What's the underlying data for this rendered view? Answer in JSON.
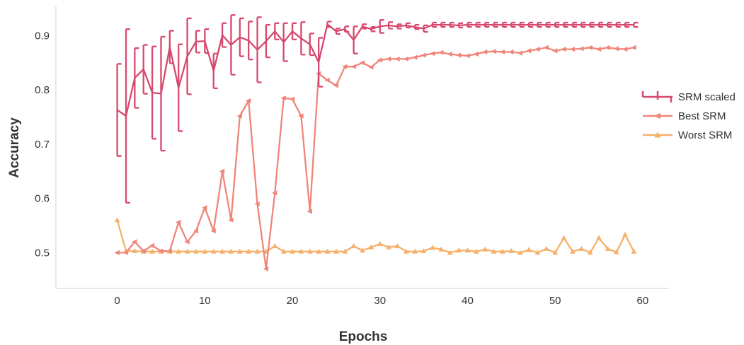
{
  "chart_data": {
    "type": "line",
    "xlabel": "Epochs",
    "ylabel": "Accuracy",
    "xlim": [
      -7,
      63
    ],
    "ylim": [
      0.434,
      0.954
    ],
    "xticks": [
      0,
      10,
      20,
      30,
      40,
      50,
      60
    ],
    "yticks": [
      0.5,
      0.6,
      0.7,
      0.8,
      0.9
    ],
    "ytick_labels": [
      "0.5",
      "0.6",
      "0.7",
      "0.8",
      "0.9"
    ],
    "grid": false,
    "legend_position": "right",
    "series": [
      {
        "name": "SRM scaled",
        "color": "#d6496e",
        "marker": "errorbar",
        "values": [
          0.763,
          0.752,
          0.822,
          0.838,
          0.795,
          0.793,
          0.879,
          0.804,
          0.862,
          0.889,
          0.89,
          0.835,
          0.901,
          0.883,
          0.897,
          0.891,
          0.874,
          0.89,
          0.908,
          0.888,
          0.908,
          0.895,
          0.884,
          0.851,
          0.921,
          0.908,
          0.912,
          0.892,
          0.917,
          0.912,
          0.917,
          0.919,
          0.917,
          0.919,
          0.916,
          0.913,
          0.92,
          0.92,
          0.92,
          0.919,
          0.92,
          0.92,
          0.92,
          0.92,
          0.92,
          0.92,
          0.92,
          0.92,
          0.92,
          0.92,
          0.92,
          0.92,
          0.92,
          0.92,
          0.92,
          0.92,
          0.92,
          0.92,
          0.92,
          0.92
        ],
        "errors": [
          0.085,
          0.16,
          0.055,
          0.045,
          0.085,
          0.105,
          0.03,
          0.08,
          0.07,
          0.02,
          0.022,
          0.032,
          0.022,
          0.055,
          0.035,
          0.035,
          0.06,
          0.03,
          0.015,
          0.035,
          0.015,
          0.03,
          0.02,
          0.045,
          0.005,
          0.005,
          0.005,
          0.025,
          0.004,
          0.004,
          0.012,
          0.006,
          0.004,
          0.004,
          0.004,
          0.006,
          0.004,
          0.004,
          0.004,
          0.004,
          0.004,
          0.004,
          0.004,
          0.004,
          0.004,
          0.004,
          0.004,
          0.004,
          0.004,
          0.004,
          0.004,
          0.004,
          0.004,
          0.004,
          0.004,
          0.004,
          0.004,
          0.004,
          0.004,
          0.004
        ]
      },
      {
        "name": "Best SRM",
        "color": "#f08579",
        "marker": "left-triangle",
        "values": [
          0.5,
          0.5,
          0.52,
          0.503,
          0.513,
          0.503,
          0.503,
          0.556,
          0.52,
          0.54,
          0.583,
          0.54,
          0.65,
          0.56,
          0.752,
          0.78,
          0.59,
          0.47,
          0.61,
          0.785,
          0.783,
          0.752,
          0.576,
          0.83,
          0.818,
          0.808,
          0.843,
          0.843,
          0.85,
          0.842,
          0.855,
          0.857,
          0.857,
          0.857,
          0.86,
          0.864,
          0.867,
          0.869,
          0.866,
          0.864,
          0.863,
          0.866,
          0.87,
          0.871,
          0.87,
          0.87,
          0.868,
          0.872,
          0.875,
          0.878,
          0.872,
          0.875,
          0.875,
          0.876,
          0.878,
          0.875,
          0.878,
          0.876,
          0.875,
          0.878
        ]
      },
      {
        "name": "Worst SRM",
        "color": "#f5b06a",
        "marker": "triangle",
        "values": [
          0.56,
          0.503,
          0.503,
          0.502,
          0.502,
          0.502,
          0.502,
          0.502,
          0.502,
          0.502,
          0.502,
          0.502,
          0.502,
          0.502,
          0.502,
          0.502,
          0.502,
          0.502,
          0.512,
          0.502,
          0.502,
          0.502,
          0.502,
          0.502,
          0.502,
          0.502,
          0.502,
          0.512,
          0.504,
          0.51,
          0.516,
          0.51,
          0.512,
          0.502,
          0.502,
          0.503,
          0.509,
          0.506,
          0.5,
          0.504,
          0.504,
          0.502,
          0.506,
          0.502,
          0.502,
          0.503,
          0.5,
          0.505,
          0.5,
          0.507,
          0.5,
          0.527,
          0.502,
          0.507,
          0.5,
          0.527,
          0.507,
          0.501,
          0.533,
          0.502
        ]
      }
    ]
  }
}
